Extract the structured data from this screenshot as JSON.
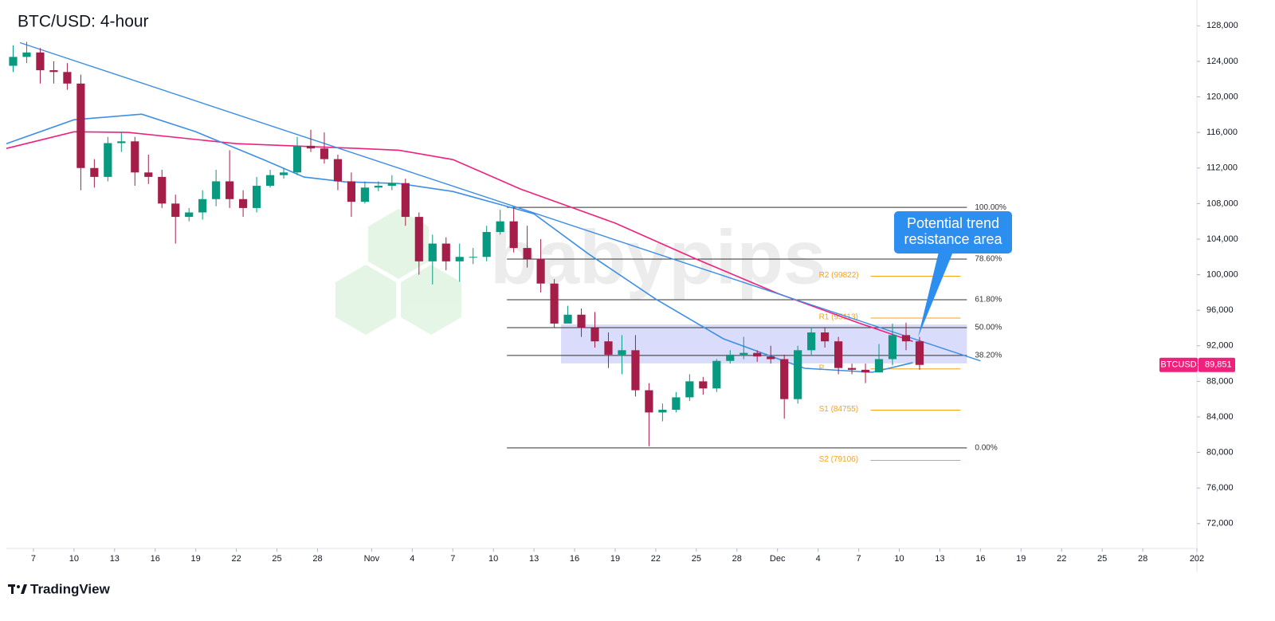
{
  "chart_data": {
    "type": "candlestick",
    "title": "BTC/USD: 4-hour",
    "watermark": "babypips",
    "brand": "TradingView",
    "x": [
      "10-05",
      "10-06",
      "10-07",
      "10-08",
      "10-09",
      "10-10",
      "10-11",
      "10-12",
      "10-13",
      "10-14",
      "10-15",
      "10-16",
      "10-17",
      "10-18",
      "10-19",
      "10-20",
      "10-21",
      "10-22",
      "10-23",
      "10-24",
      "10-25",
      "10-26",
      "10-27",
      "10-28",
      "10-29",
      "10-30",
      "10-31",
      "11-01",
      "11-02",
      "11-03",
      "11-04",
      "11-05",
      "11-06",
      "11-07",
      "11-08",
      "11-09",
      "11-10",
      "11-11",
      "11-12",
      "11-13",
      "11-14",
      "11-15",
      "11-16",
      "11-17",
      "11-18",
      "11-19",
      "11-20",
      "11-21",
      "11-22",
      "11-23",
      "11-24",
      "11-25",
      "11-26",
      "11-27",
      "11-28",
      "11-29",
      "11-30",
      "12-01",
      "12-02",
      "12-03",
      "12-04",
      "12-05",
      "12-06",
      "12-07",
      "12-08",
      "12-09",
      "12-10",
      "12-11"
    ],
    "open": [
      123500,
      124500,
      125000,
      123000,
      122800,
      121500,
      112000,
      111000,
      114800,
      115000,
      111500,
      111000,
      108000,
      106500,
      107000,
      108500,
      110500,
      108500,
      107500,
      110000,
      111200,
      111500,
      114500,
      114200,
      113000,
      110500,
      108200,
      109800,
      110000,
      110300,
      106500,
      101500,
      103500,
      101500,
      102000,
      102000,
      104800,
      106000,
      103000,
      101800,
      99000,
      94500,
      95500,
      94000,
      92500,
      91000,
      91500,
      87000,
      84500,
      84800,
      86200,
      88000,
      87200,
      90300,
      91000,
      91200,
      90800,
      90500,
      86000,
      91500,
      93500,
      92500,
      89500,
      89300,
      89000,
      90500,
      93200,
      92500
    ],
    "high": [
      125800,
      126200,
      125500,
      124000,
      123800,
      122500,
      113000,
      115500,
      116000,
      115500,
      113500,
      111800,
      109000,
      107500,
      109500,
      111800,
      114000,
      109500,
      111000,
      111800,
      112000,
      115500,
      116300,
      116000,
      113500,
      111500,
      110500,
      110500,
      111200,
      110800,
      107000,
      104500,
      104200,
      103500,
      103000,
      105500,
      107300,
      107500,
      105500,
      104000,
      99500,
      96500,
      96200,
      95800,
      93500,
      93200,
      93200,
      87800,
      85500,
      86800,
      88800,
      88500,
      90500,
      91500,
      93000,
      91500,
      92000,
      91000,
      92000,
      94100,
      94000,
      93000,
      90000,
      90000,
      92200,
      94500,
      94600,
      93000
    ],
    "low": [
      122800,
      123800,
      121500,
      121500,
      120800,
      109500,
      109800,
      110500,
      113800,
      110000,
      110200,
      107500,
      103500,
      106000,
      106200,
      107700,
      107500,
      106500,
      107000,
      109800,
      110800,
      111200,
      113800,
      112500,
      109500,
      106500,
      108000,
      109400,
      109500,
      105500,
      100000,
      98900,
      100500,
      99200,
      101200,
      101500,
      104500,
      102500,
      100800,
      98000,
      94000,
      94800,
      93000,
      91800,
      89500,
      88800,
      86300,
      80700,
      83500,
      84500,
      85800,
      86500,
      86800,
      90000,
      90500,
      90200,
      90000,
      83800,
      85500,
      91000,
      91800,
      88800,
      88800,
      87800,
      89500,
      89800,
      91500,
      89300
    ],
    "close": [
      124500,
      125000,
      123000,
      122800,
      121500,
      112000,
      111000,
      114800,
      115000,
      111500,
      111000,
      108000,
      106500,
      107000,
      108500,
      110500,
      108500,
      107500,
      110000,
      111200,
      111500,
      114500,
      114200,
      113000,
      110500,
      108200,
      109800,
      110000,
      110300,
      106500,
      101500,
      103500,
      101500,
      102000,
      102000,
      104800,
      106000,
      103000,
      101800,
      99000,
      94500,
      95500,
      94000,
      92500,
      91000,
      91500,
      87000,
      84500,
      84800,
      86200,
      88000,
      87200,
      90300,
      91000,
      91200,
      90800,
      90500,
      86000,
      91500,
      93500,
      92500,
      89500,
      89300,
      89000,
      90500,
      93200,
      92500,
      89851
    ],
    "up_color": "#089981",
    "down_color": "#a51e4a",
    "lines": [
      {
        "color": "#f0207d",
        "x": [
          "10-05",
          "10-10",
          "10-14",
          "10-22",
          "10-31",
          "11-03",
          "11-07",
          "11-12",
          "11-19",
          "11-25",
          "12-01",
          "12-07",
          "12-11"
        ],
        "values": [
          114200,
          116080,
          116000,
          114740,
          114200,
          114000,
          112950,
          109640,
          105800,
          101750,
          97900,
          94570,
          92500
        ]
      },
      {
        "color": "#3d8fe6",
        "x": [
          "10-05",
          "10-10",
          "10-15",
          "10-19",
          "10-24",
          "10-27",
          "10-30",
          "11-03",
          "11-07",
          "11-13",
          "11-17",
          "11-22",
          "11-27",
          "12-01",
          "12-03",
          "12-08",
          "12-11"
        ],
        "values": [
          114740,
          117430,
          118060,
          116080,
          112950,
          110980,
          110440,
          110260,
          109360,
          106850,
          102360,
          97250,
          92790,
          90550,
          89470,
          89020,
          90100
        ]
      }
    ],
    "trendline": {
      "color": "#3d8fe6",
      "x": [
        "10-06",
        "12-16"
      ],
      "values": [
        126100,
        90300
      ]
    },
    "zone": {
      "color": "#c5c9f7",
      "x": [
        "11-15",
        "12-15"
      ],
      "values": [
        90020,
        94400
      ]
    },
    "fib": {
      "x": [
        "11-11",
        "12-15"
      ],
      "levels": [
        {
          "price": 107570,
          "label": "100.00%"
        },
        {
          "price": 101750,
          "label": "78.60%"
        },
        {
          "price": 97180,
          "label": "61.80%"
        },
        {
          "price": 94040,
          "label": "50.00%"
        },
        {
          "price": 90910,
          "label": "38.20%"
        },
        {
          "price": 80510,
          "label": "0.00%"
        }
      ]
    },
    "pivots": {
      "color": "#f7a21b",
      "x": [
        "12-07",
        "12-15"
      ],
      "levels": [
        {
          "price": 99822,
          "label": "R2 (99822)"
        },
        {
          "price": 95113,
          "label": "R1 (95113)"
        },
        {
          "price": 89400,
          "label": "P"
        },
        {
          "price": 84755,
          "label": "S1 (84755)"
        },
        {
          "price": 79106,
          "label": "S2 (79106)"
        }
      ]
    },
    "annotation": {
      "lines": [
        "Potential trend",
        "resistance area"
      ],
      "color": "#2c8ff0"
    },
    "price_tag": {
      "symbol": "BTCUSD",
      "value": 89851,
      "label": "89,851",
      "color": "#f0207d"
    },
    "xlim": [
      "10-05",
      "01-01"
    ],
    "xticks": [
      {
        "value": "10-07",
        "label": "7"
      },
      {
        "value": "10-10",
        "label": "10"
      },
      {
        "value": "10-13",
        "label": "13"
      },
      {
        "value": "10-16",
        "label": "16"
      },
      {
        "value": "10-19",
        "label": "19"
      },
      {
        "value": "10-22",
        "label": "22"
      },
      {
        "value": "10-25",
        "label": "25"
      },
      {
        "value": "10-28",
        "label": "28"
      },
      {
        "value": "11-01",
        "label": "Nov"
      },
      {
        "value": "11-04",
        "label": "4"
      },
      {
        "value": "11-07",
        "label": "7"
      },
      {
        "value": "11-10",
        "label": "10"
      },
      {
        "value": "11-13",
        "label": "13"
      },
      {
        "value": "11-16",
        "label": "16"
      },
      {
        "value": "11-19",
        "label": "19"
      },
      {
        "value": "11-22",
        "label": "22"
      },
      {
        "value": "11-25",
        "label": "25"
      },
      {
        "value": "11-28",
        "label": "28"
      },
      {
        "value": "12-01",
        "label": "Dec"
      },
      {
        "value": "12-04",
        "label": "4"
      },
      {
        "value": "12-07",
        "label": "7"
      },
      {
        "value": "12-10",
        "label": "10"
      },
      {
        "value": "12-13",
        "label": "13"
      },
      {
        "value": "12-16",
        "label": "16"
      },
      {
        "value": "12-19",
        "label": "19"
      },
      {
        "value": "12-22",
        "label": "22"
      },
      {
        "value": "12-25",
        "label": "25"
      },
      {
        "value": "12-28",
        "label": "28"
      },
      {
        "value": "01-01",
        "label": "202"
      }
    ],
    "ylim": [
      69200,
      130900
    ],
    "yticks": [
      {
        "value": 72000,
        "label": "72,000"
      },
      {
        "value": 76000,
        "label": "76,000"
      },
      {
        "value": 80000,
        "label": "80,000"
      },
      {
        "value": 84000,
        "label": "84,000"
      },
      {
        "value": 88000,
        "label": "88,000"
      },
      {
        "value": 92000,
        "label": "92,000"
      },
      {
        "value": 96000,
        "label": "96,000"
      },
      {
        "value": 100000,
        "label": "100,000"
      },
      {
        "value": 104000,
        "label": "104,000"
      },
      {
        "value": 108000,
        "label": "108,000"
      },
      {
        "value": 112000,
        "label": "112,000"
      },
      {
        "value": 116000,
        "label": "116,000"
      },
      {
        "value": 120000,
        "label": "120,000"
      },
      {
        "value": 124000,
        "label": "124,000"
      },
      {
        "value": 128000,
        "label": "128,000"
      }
    ],
    "grid": false
  }
}
